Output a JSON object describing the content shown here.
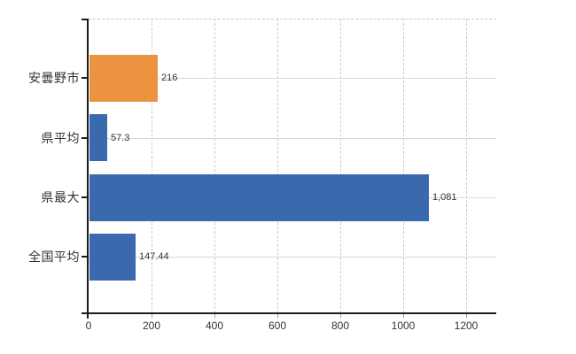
{
  "chart_data": {
    "type": "bar",
    "orientation": "horizontal",
    "title": "",
    "xlabel": "",
    "ylabel": "",
    "categories": [
      "安曇野市",
      "県平均",
      "県最大",
      "全国平均"
    ],
    "values": [
      216,
      57.3,
      1081,
      147.44
    ],
    "value_labels": [
      "216",
      "57.3",
      "1,081",
      "147.44"
    ],
    "bar_colors": [
      "#ec9340",
      "#3a69ae",
      "#3a69ae",
      "#3a69ae"
    ],
    "x_ticks": [
      0,
      200,
      400,
      600,
      800,
      1000,
      1200
    ],
    "x_tick_labels": [
      "0",
      "200",
      "400",
      "600",
      "800",
      "1000",
      "1200"
    ],
    "xlim": [
      0,
      1300
    ],
    "grid": true,
    "legend": null
  },
  "colors": {
    "bar_blue": "#3a69ae",
    "bar_orange": "#ec9340",
    "axis": "#1a1a1a",
    "grid_horizontal": "#d5dcd6",
    "grid_vertical_dashed": "#cccccc",
    "tick_minor": "#aaaaaa",
    "text": "#333333",
    "background": "#ffffff"
  }
}
